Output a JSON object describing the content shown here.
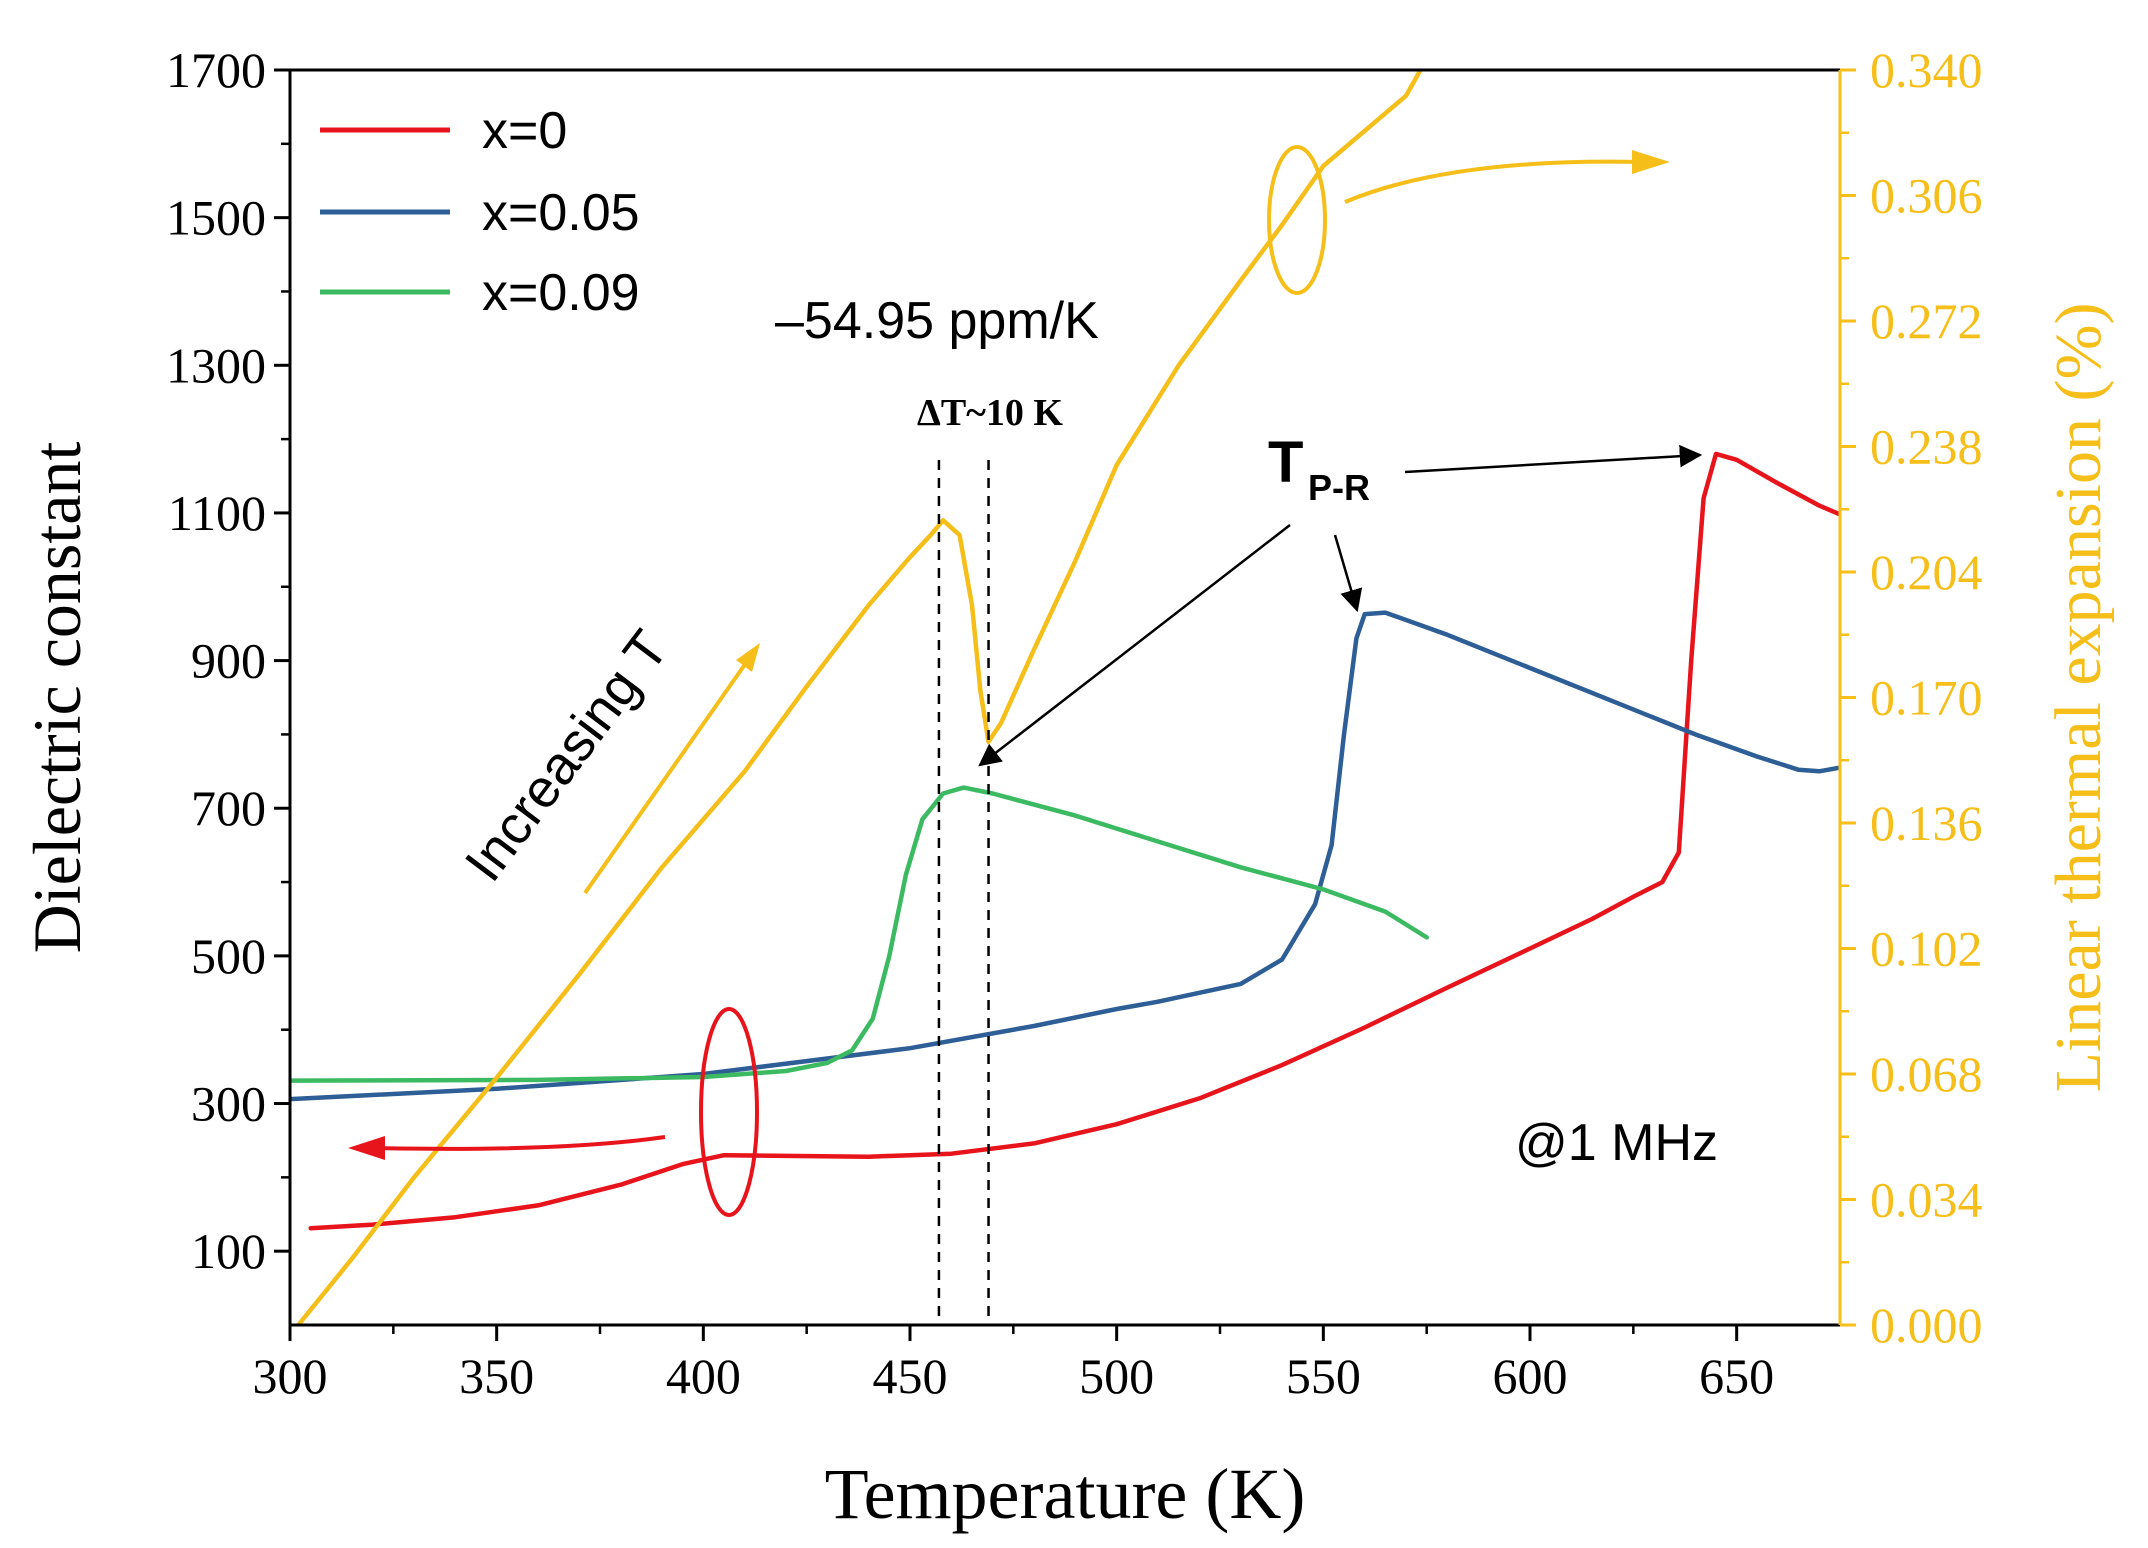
{
  "chart_data": {
    "type": "line",
    "x_axis": {
      "label": "Temperature (K)",
      "range": [
        300,
        675
      ],
      "ticks": [
        300,
        350,
        400,
        450,
        500,
        550,
        600,
        650
      ],
      "minor_ticks": [
        325,
        375,
        425,
        475,
        525,
        575,
        625
      ]
    },
    "y_axis_left": {
      "label": "Dielectric constant",
      "range": [
        0,
        1700
      ],
      "ticks": [
        100,
        300,
        500,
        700,
        900,
        1100,
        1300,
        1500,
        1700
      ],
      "minor_ticks": [
        200,
        400,
        600,
        800,
        1000,
        1200,
        1400,
        1600
      ]
    },
    "y_axis_right": {
      "label": "Linear thermal expansion (%)",
      "range": [
        0.0,
        0.34
      ],
      "tick_labels": [
        "0.000",
        "0.034",
        "0.068",
        "0.102",
        "0.136",
        "0.170",
        "0.204",
        "0.238",
        "0.272",
        "0.306",
        "0.340"
      ],
      "tick_values": [
        0.0,
        0.034,
        0.068,
        0.102,
        0.136,
        0.17,
        0.204,
        0.238,
        0.272,
        0.306,
        0.34
      ],
      "color": "#f5be19"
    },
    "series": [
      {
        "name": "x=0",
        "axis": "left",
        "color": "#e8141c",
        "points": [
          [
            305,
            131
          ],
          [
            320,
            136
          ],
          [
            340,
            146
          ],
          [
            360,
            162
          ],
          [
            380,
            190
          ],
          [
            395,
            218
          ],
          [
            405,
            230
          ],
          [
            420,
            229
          ],
          [
            440,
            228
          ],
          [
            460,
            232
          ],
          [
            480,
            246
          ],
          [
            500,
            272
          ],
          [
            520,
            307
          ],
          [
            540,
            352
          ],
          [
            560,
            403
          ],
          [
            580,
            457
          ],
          [
            600,
            510
          ],
          [
            615,
            550
          ],
          [
            625,
            580
          ],
          [
            632,
            600
          ],
          [
            636,
            640
          ],
          [
            639,
            900
          ],
          [
            642,
            1120
          ],
          [
            645,
            1180
          ],
          [
            650,
            1172
          ],
          [
            660,
            1140
          ],
          [
            670,
            1110
          ],
          [
            675,
            1098
          ]
        ]
      },
      {
        "name": "x=0.05",
        "axis": "left",
        "color": "#2e5e96",
        "points": [
          [
            300,
            306
          ],
          [
            350,
            320
          ],
          [
            400,
            340
          ],
          [
            450,
            375
          ],
          [
            480,
            405
          ],
          [
            500,
            428
          ],
          [
            510,
            438
          ],
          [
            520,
            450
          ],
          [
            530,
            462
          ],
          [
            540,
            495
          ],
          [
            548,
            570
          ],
          [
            552,
            650
          ],
          [
            555,
            800
          ],
          [
            558,
            930
          ],
          [
            560,
            963
          ],
          [
            565,
            965
          ],
          [
            580,
            935
          ],
          [
            600,
            890
          ],
          [
            620,
            845
          ],
          [
            640,
            800
          ],
          [
            655,
            770
          ],
          [
            665,
            752
          ],
          [
            670,
            750
          ],
          [
            675,
            755
          ]
        ]
      },
      {
        "name": "x=0.09",
        "axis": "left",
        "color": "#3cba62",
        "points": [
          [
            300,
            331
          ],
          [
            360,
            332
          ],
          [
            400,
            336
          ],
          [
            420,
            344
          ],
          [
            430,
            355
          ],
          [
            436,
            372
          ],
          [
            441,
            415
          ],
          [
            445,
            500
          ],
          [
            449,
            610
          ],
          [
            453,
            685
          ],
          [
            458,
            720
          ],
          [
            463,
            728
          ],
          [
            470,
            720
          ],
          [
            490,
            690
          ],
          [
            510,
            655
          ],
          [
            530,
            620
          ],
          [
            550,
            590
          ],
          [
            565,
            560
          ],
          [
            575,
            525
          ]
        ]
      },
      {
        "name": "thermal expansion",
        "axis": "right",
        "color": "#f5be19",
        "points": [
          [
            302,
            0.0
          ],
          [
            315,
            0.018
          ],
          [
            330,
            0.04
          ],
          [
            350,
            0.067
          ],
          [
            370,
            0.095
          ],
          [
            390,
            0.124
          ],
          [
            410,
            0.15
          ],
          [
            425,
            0.173
          ],
          [
            440,
            0.195
          ],
          [
            450,
            0.208
          ],
          [
            455,
            0.214
          ],
          [
            458,
            0.218
          ],
          [
            462,
            0.214
          ],
          [
            465,
            0.195
          ],
          [
            467,
            0.172
          ],
          [
            469,
            0.158
          ],
          [
            472,
            0.163
          ],
          [
            480,
            0.183
          ],
          [
            490,
            0.207
          ],
          [
            500,
            0.233
          ],
          [
            515,
            0.26
          ],
          [
            530,
            0.283
          ],
          [
            540,
            0.298
          ],
          [
            550,
            0.314
          ],
          [
            570,
            0.333
          ],
          [
            575,
            0.343
          ]
        ]
      }
    ],
    "legend": [
      "x=0",
      "x=0.05",
      "x=0.09"
    ],
    "legend_position": "top-left",
    "annotations": {
      "ppm": "–54.95 ppm/K",
      "delta_t": "ΔT~10 K",
      "tpr_main": "T",
      "tpr_sub": "P-R",
      "increasing": "Increasing T",
      "freq": "@1 MHz"
    },
    "reference_lines_x": [
      457,
      469
    ]
  }
}
